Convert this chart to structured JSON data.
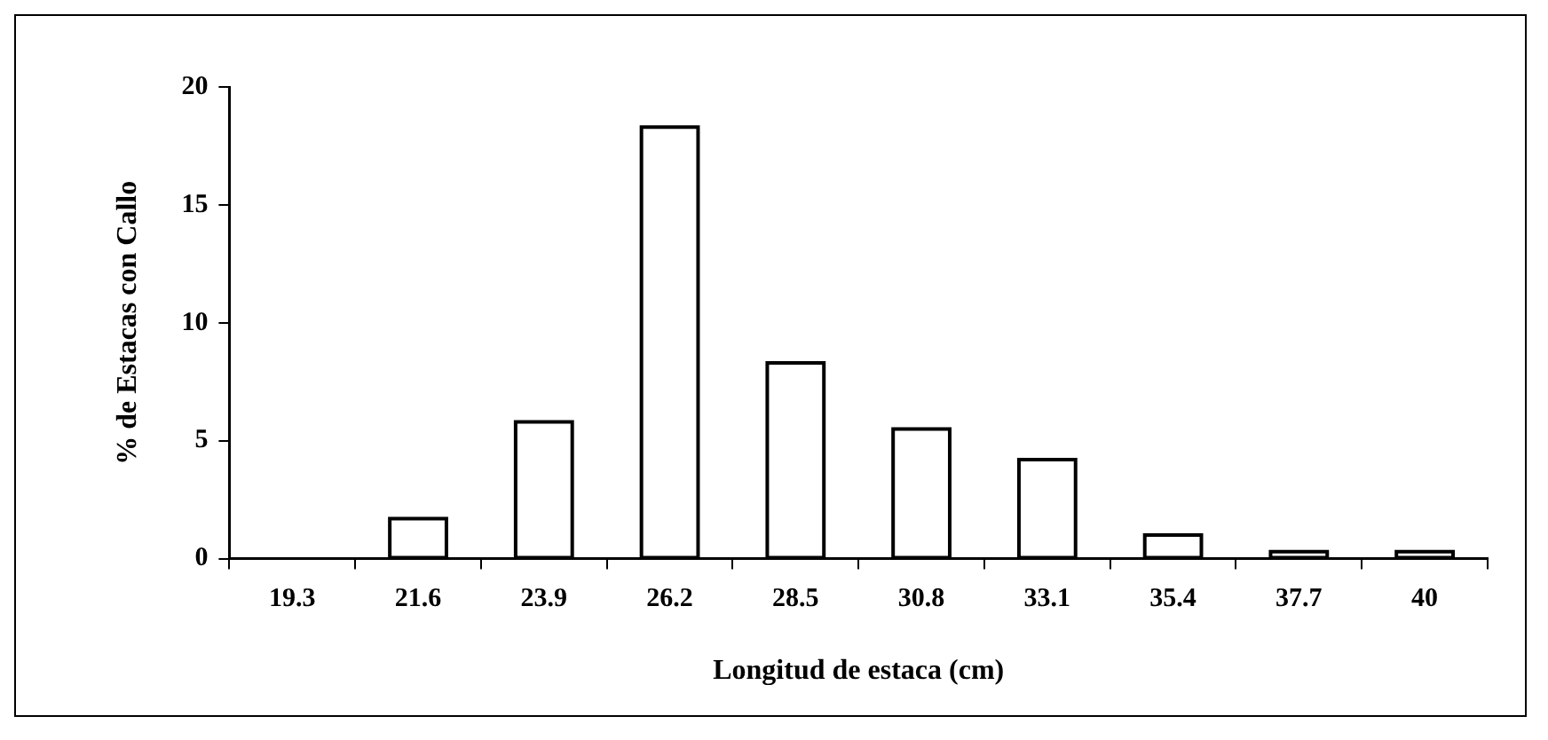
{
  "chart_data": {
    "type": "bar",
    "xlabel": "Longitud de estaca (cm)",
    "ylabel": "% de Estacas con Callo",
    "categories": [
      "19.3",
      "21.6",
      "23.9",
      "26.2",
      "28.5",
      "30.8",
      "33.1",
      "35.4",
      "37.7",
      "40"
    ],
    "values": [
      0,
      1.7,
      5.8,
      18.3,
      8.3,
      5.5,
      4.2,
      1.0,
      0.3,
      0.3
    ],
    "color": "#ffffff",
    "ylim": [
      0,
      20
    ],
    "yticks": [
      0,
      5,
      10,
      15,
      20
    ],
    "grid": false,
    "legend": false
  }
}
